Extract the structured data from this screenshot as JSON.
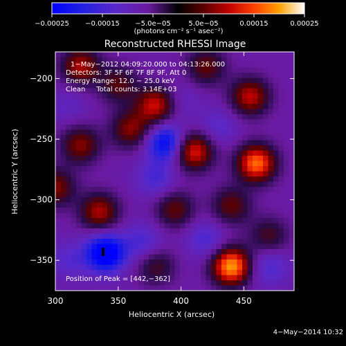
{
  "chart_data": {
    "type": "heatmap",
    "title": "Reconstructed RHESSI Image",
    "xlabel": "Heliocentric X (arcsec)",
    "ylabel": "Heliocentric Y (arcsec)",
    "xlim": [
      300,
      490
    ],
    "ylim": [
      -375,
      -178
    ],
    "x_ticks": [
      300,
      350,
      400,
      450
    ],
    "x_tick_labels": [
      "300",
      "350",
      "400",
      "450"
    ],
    "y_ticks": [
      -200,
      -250,
      -300,
      -350
    ],
    "y_tick_labels": [
      "−200",
      "−250",
      "−300",
      "−350"
    ],
    "colorbar": {
      "range": [
        -0.00025,
        0.00025
      ],
      "tick_values": [
        -0.00025,
        -0.00015,
        -5e-05,
        5e-05,
        0.00015,
        0.00025
      ],
      "tick_labels": [
        "−0.00025",
        "−0.00015",
        "−5.0e−05",
        "5.0e−05",
        "0.00015",
        "0.00025"
      ],
      "units_text": "(photons cm⁻² s⁻¹ asec⁻²)"
    },
    "annotations": [
      "1−May−2012 04:09:20.000 to 04:13:26.000",
      "Detectors: 3F 5F 6F 7F 8F 9F, Att 0",
      "Energy Range: 12.0 − 25.0 keV",
      "Clean     Total counts: 3.14E+03"
    ],
    "peak_label": "Position of Peak = [442,−362]",
    "peak": [
      442,
      -362
    ],
    "min_marker": [
      340,
      -344
    ],
    "hotspots": [
      {
        "x": 440,
        "y": -355,
        "value": 0.00025
      },
      {
        "x": 460,
        "y": -270,
        "value": 0.00022
      },
      {
        "x": 410,
        "y": -260,
        "value": 0.00018
      },
      {
        "x": 380,
        "y": -222,
        "value": 0.00016
      },
      {
        "x": 455,
        "y": -215,
        "value": 0.00015
      },
      {
        "x": 320,
        "y": -190,
        "value": 0.00014
      },
      {
        "x": 335,
        "y": -310,
        "value": 0.00014
      },
      {
        "x": 320,
        "y": -255,
        "value": 0.00012
      },
      {
        "x": 360,
        "y": -242,
        "value": 0.00012
      },
      {
        "x": 300,
        "y": -290,
        "value": 0.00012
      },
      {
        "x": 395,
        "y": -308,
        "value": 0.0001
      },
      {
        "x": 440,
        "y": -305,
        "value": 0.0001
      },
      {
        "x": 420,
        "y": -190,
        "value": 0.0001
      },
      {
        "x": 350,
        "y": -205,
        "value": 9e-05
      },
      {
        "x": 380,
        "y": -355,
        "value": 8e-05
      },
      {
        "x": 470,
        "y": -330,
        "value": 8e-05
      },
      {
        "x": 340,
        "y": -344,
        "value": -0.00025
      },
      {
        "x": 388,
        "y": -253,
        "value": -0.0002
      },
      {
        "x": 380,
        "y": -283,
        "value": -0.0001
      },
      {
        "x": 370,
        "y": -335,
        "value": -0.0001
      },
      {
        "x": 420,
        "y": -333,
        "value": -0.0001
      },
      {
        "x": 470,
        "y": -355,
        "value": -0.0001
      },
      {
        "x": 310,
        "y": -350,
        "value": -8e-05
      },
      {
        "x": 430,
        "y": -240,
        "value": -8e-05
      },
      {
        "x": 400,
        "y": -218,
        "value": -6e-05
      },
      {
        "x": 310,
        "y": -222,
        "value": -6e-05
      }
    ]
  },
  "footer": {
    "timestamp": "4−May−2014 10:32"
  }
}
